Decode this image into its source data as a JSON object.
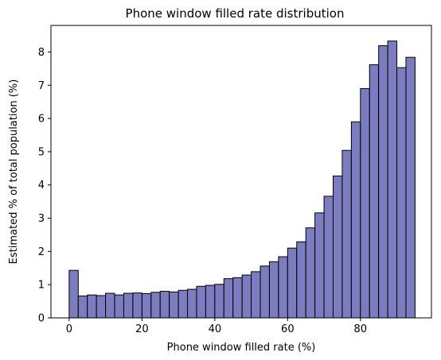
{
  "chart_data": {
    "type": "bar",
    "title": "Phone window filled rate distribution",
    "xlabel": "Phone window filled rate (%)",
    "ylabel": "Estimated % of total population (%)",
    "xlim": [
      -5,
      99.5
    ],
    "ylim": [
      0,
      8.8
    ],
    "xticks": [
      0,
      20,
      40,
      60,
      80
    ],
    "yticks": [
      0,
      1,
      2,
      3,
      4,
      5,
      6,
      7,
      8
    ],
    "bin_width": 2.5,
    "bin_start": 0,
    "values": [
      1.43,
      0.66,
      0.69,
      0.67,
      0.74,
      0.69,
      0.74,
      0.75,
      0.73,
      0.77,
      0.8,
      0.78,
      0.83,
      0.86,
      0.95,
      0.98,
      1.01,
      1.18,
      1.21,
      1.29,
      1.39,
      1.56,
      1.69,
      1.84,
      2.1,
      2.29,
      2.71,
      3.16,
      3.66,
      4.27,
      5.04,
      5.9,
      6.9,
      7.62,
      8.19,
      8.33,
      7.53,
      7.84
    ],
    "grid": false,
    "bar_color": "#7b7dc0",
    "edge_color": "#000000"
  }
}
